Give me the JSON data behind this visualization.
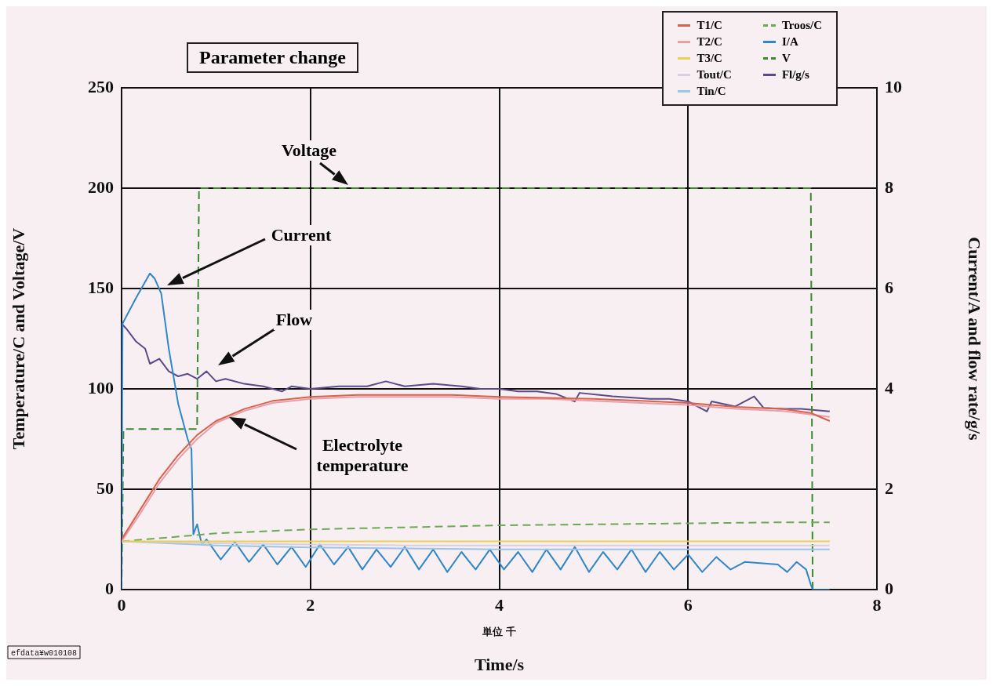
{
  "chart_data": {
    "type": "line",
    "title": "Parameter change",
    "xlabel": "Time/s",
    "ylabel": "Temperature/C and Voltage/V",
    "y2label": "Current/A and flow rate/g/s",
    "xlim": [
      0,
      8
    ],
    "xticks": [
      0,
      2,
      4,
      6,
      8
    ],
    "ylim": [
      0,
      250
    ],
    "yticks": [
      0,
      50,
      100,
      150,
      200,
      250
    ],
    "y2lim": [
      0,
      10
    ],
    "y2ticks": [
      0,
      2,
      4,
      6,
      8,
      10
    ],
    "grid": true,
    "legend": "top right",
    "marker": "none",
    "series": [
      {
        "name": "T1/C",
        "color": "#d9604a",
        "x": [
          0,
          0.2,
          0.4,
          0.6,
          0.8,
          1.0,
          1.3,
          1.6,
          2.0,
          2.5,
          3.0,
          3.5,
          4.0,
          4.5,
          5.0,
          5.5,
          6.0,
          6.5,
          7.0,
          7.3,
          7.5
        ],
        "values": [
          25,
          40,
          55,
          67,
          77,
          84,
          90,
          94,
          96,
          97,
          97,
          97,
          96,
          95.5,
          95,
          94,
          93,
          91,
          90,
          88,
          84
        ]
      },
      {
        "name": "T2/C",
        "color": "#e8a0a8",
        "x": [
          0,
          0.2,
          0.4,
          0.6,
          0.8,
          1.0,
          1.3,
          1.6,
          2.0,
          2.5,
          3.0,
          3.5,
          4.0,
          4.5,
          5.0,
          5.5,
          6.0,
          6.5,
          7.0,
          7.5
        ],
        "values": [
          24,
          38,
          53,
          65,
          75,
          83,
          89,
          93,
          95,
          96,
          96,
          96,
          95,
          95,
          94,
          93,
          92,
          90,
          89,
          86
        ]
      },
      {
        "name": "T3/C",
        "color": "#e8d050",
        "x": [
          0,
          1,
          2,
          3,
          4,
          5,
          6,
          7,
          7.5
        ],
        "values": [
          24,
          24,
          24,
          24,
          24,
          24,
          24,
          24,
          24
        ]
      },
      {
        "name": "Tout/C",
        "color": "#d8d0e0",
        "x": [
          0,
          1,
          2,
          3,
          4,
          5,
          6,
          7,
          7.5
        ],
        "values": [
          24,
          23,
          22.5,
          22,
          22,
          22,
          22,
          22,
          22
        ]
      },
      {
        "name": "Tin/C",
        "color": "#9cc4e4",
        "x": [
          0,
          1,
          2,
          3,
          4,
          5,
          6,
          7,
          7.5
        ],
        "values": [
          24,
          22,
          21,
          20.5,
          20,
          20,
          20,
          20,
          20
        ]
      },
      {
        "name": "Troos/C",
        "color": "#6aaa50",
        "line_style": "dashed",
        "x": [
          0,
          1,
          2,
          3,
          4,
          5,
          6,
          7,
          7.5
        ],
        "values": [
          24,
          28,
          30,
          31,
          32,
          32.5,
          33,
          33.5,
          33.5
        ]
      },
      {
        "name": "I/A",
        "color": "#2f86c8",
        "axis": "y2",
        "x": [
          0,
          0.01,
          0.15,
          0.3,
          0.35,
          0.42,
          0.5,
          0.6,
          0.7,
          0.74,
          0.76,
          0.8,
          0.85,
          0.9,
          1.05,
          1.2,
          1.35,
          1.5,
          1.65,
          1.8,
          1.95,
          2.1,
          2.25,
          2.4,
          2.55,
          2.7,
          2.85,
          3.0,
          3.15,
          3.3,
          3.45,
          3.6,
          3.75,
          3.9,
          4.05,
          4.2,
          4.35,
          4.5,
          4.65,
          4.8,
          4.95,
          5.1,
          5.25,
          5.4,
          5.55,
          5.7,
          5.85,
          6.0,
          6.15,
          6.3,
          6.45,
          6.6,
          6.95,
          7.05,
          7.15,
          7.25,
          7.3,
          7.32,
          7.5
        ],
        "values": [
          0,
          5.3,
          5.8,
          6.3,
          6.2,
          5.9,
          4.8,
          3.7,
          3.0,
          2.8,
          1.1,
          1.3,
          0.9,
          1.0,
          0.6,
          0.95,
          0.55,
          0.9,
          0.5,
          0.85,
          0.45,
          0.9,
          0.5,
          0.85,
          0.4,
          0.8,
          0.45,
          0.85,
          0.4,
          0.8,
          0.35,
          0.75,
          0.4,
          0.8,
          0.4,
          0.75,
          0.35,
          0.8,
          0.4,
          0.85,
          0.35,
          0.75,
          0.4,
          0.8,
          0.35,
          0.75,
          0.4,
          0.7,
          0.35,
          0.65,
          0.4,
          0.55,
          0.5,
          0.35,
          0.55,
          0.4,
          0.1,
          0,
          0
        ]
      },
      {
        "name": "V",
        "color": "#3a8a2a",
        "line_style": "dashed",
        "x": [
          0,
          0.02,
          0.8,
          0.82,
          7.3,
          7.32,
          7.5
        ],
        "values": [
          0,
          80,
          80,
          200,
          200,
          0,
          0
        ]
      },
      {
        "name": "Fl/g/s",
        "color": "#5a4a8a",
        "axis": "y2",
        "x": [
          0,
          0.05,
          0.15,
          0.25,
          0.3,
          0.4,
          0.5,
          0.6,
          0.7,
          0.8,
          0.9,
          1.0,
          1.1,
          1.3,
          1.5,
          1.7,
          1.8,
          2.0,
          2.3,
          2.6,
          2.8,
          3.0,
          3.3,
          3.6,
          3.8,
          4.0,
          4.2,
          4.4,
          4.6,
          4.8,
          4.85,
          5.2,
          5.6,
          5.8,
          6.0,
          6.2,
          6.25,
          6.5,
          6.7,
          6.8,
          7.0,
          7.2,
          7.5
        ],
        "values": [
          5.3,
          5.2,
          4.95,
          4.8,
          4.5,
          4.6,
          4.35,
          4.25,
          4.3,
          4.2,
          4.35,
          4.15,
          4.2,
          4.1,
          4.05,
          3.95,
          4.05,
          4.0,
          4.05,
          4.05,
          4.15,
          4.05,
          4.1,
          4.05,
          4.0,
          4.0,
          3.95,
          3.95,
          3.9,
          3.75,
          3.92,
          3.85,
          3.8,
          3.8,
          3.75,
          3.55,
          3.75,
          3.65,
          3.85,
          3.62,
          3.6,
          3.6,
          3.55
        ]
      }
    ],
    "annotations": [
      "Voltage",
      "Current",
      "Flow",
      "Electrolyte temperature",
      "単位 千",
      "efdata¥w010108"
    ]
  }
}
